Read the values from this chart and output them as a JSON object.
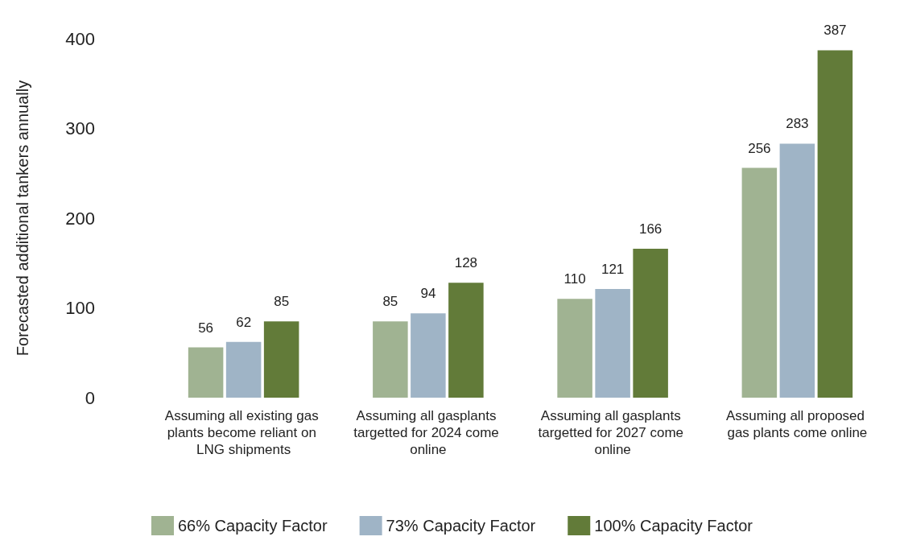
{
  "chart_data": {
    "type": "bar",
    "ylabel": "Forecasted additional tankers annually",
    "categories": [
      "Assuming all existing gas plants become reliant on LNG shipments",
      "Assuming all gasplants targetted for 2024 come online",
      "Assuming all gasplants targetted for 2027 come online",
      "Assuming all proposed gas plants come online"
    ],
    "series": [
      {
        "name": "66% Capacity Factor",
        "color": "#a0b392",
        "values": [
          56,
          85,
          110,
          256
        ]
      },
      {
        "name": "73% Capacity Factor",
        "color": "#9fb4c6",
        "values": [
          62,
          94,
          121,
          283
        ]
      },
      {
        "name": "100% Capacity Factor",
        "color": "#627b39",
        "values": [
          85,
          128,
          166,
          387
        ]
      }
    ],
    "ylim": [
      0,
      400
    ],
    "yticks": [
      0,
      100,
      200,
      300,
      400
    ],
    "grid": false,
    "legend": "bottom",
    "data_labels": true
  }
}
